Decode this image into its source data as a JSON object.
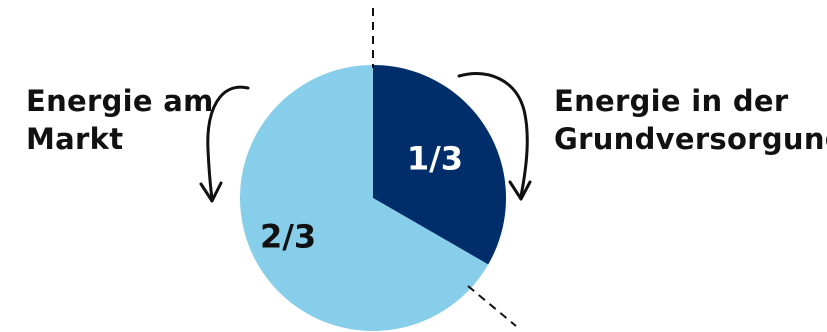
{
  "chart_data": {
    "type": "pie",
    "slices": [
      {
        "label": "1/3",
        "value": 0.3333,
        "color": "#002e6b",
        "label_color": "#ffffff"
      },
      {
        "label": "2/3",
        "value": 0.6667,
        "color": "#87ceea",
        "label_color": "#111111"
      }
    ],
    "annotations": {
      "left": [
        "Energie am",
        "Markt"
      ],
      "right": [
        "Energie in der",
        "Grundversorgung"
      ]
    }
  }
}
